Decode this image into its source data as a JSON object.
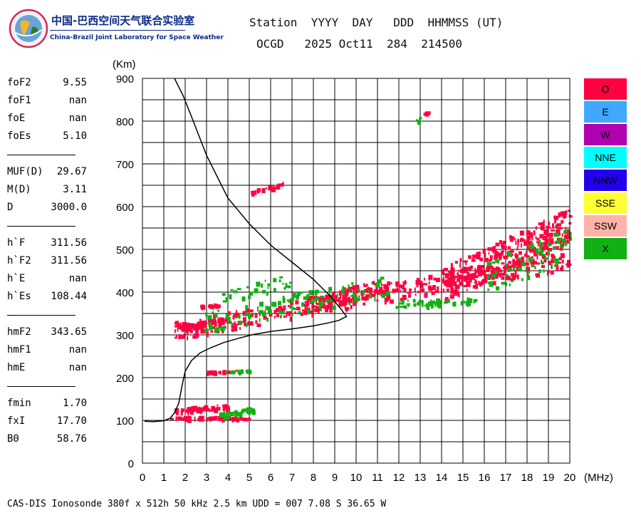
{
  "logo": {
    "name_cn": "中国-巴西空间天气联合实验室",
    "name_en": "China-Brazil Joint Laboratory for Space Weather"
  },
  "header": {
    "labels": "Station  YYYY  DAY   DDD  HHMMSS (UT)",
    "values": "OCGD   2025 Oct11  284  214500"
  },
  "params": [
    {
      "key": "foF2",
      "value": "9.55"
    },
    {
      "key": "foF1",
      "value": "nan"
    },
    {
      "key": "foE",
      "value": "nan"
    },
    {
      "key": "foEs",
      "value": "5.10"
    },
    {
      "key": "MUF(D)",
      "value": "29.67"
    },
    {
      "key": "M(D)",
      "value": "3.11"
    },
    {
      "key": "D",
      "value": "3000.0"
    },
    {
      "key": "h`F",
      "value": "311.56"
    },
    {
      "key": "h`F2",
      "value": "311.56"
    },
    {
      "key": "h`E",
      "value": "nan"
    },
    {
      "key": "h`Es",
      "value": "108.44"
    },
    {
      "key": "hmF2",
      "value": "343.65"
    },
    {
      "key": "hmF1",
      "value": "nan"
    },
    {
      "key": "hmE",
      "value": "nan"
    },
    {
      "key": "fmin",
      "value": "1.70"
    },
    {
      "key": "fxI",
      "value": "17.70"
    },
    {
      "key": "B0",
      "value": "58.76"
    }
  ],
  "footer": "CAS-DIS Ionosonde 380f x 512h 50 kHz 2.5 km UDD = 007 7.08 S 36.65 W",
  "legend": [
    {
      "label": "O",
      "color": "#ff0040"
    },
    {
      "label": "E",
      "color": "#40a8ff"
    },
    {
      "label": "W",
      "color": "#b000b0"
    },
    {
      "label": "NNE",
      "color": "#00ffff"
    },
    {
      "label": "NNW",
      "color": "#2200ee"
    },
    {
      "label": "SSE",
      "color": "#ffff33"
    },
    {
      "label": "SSW",
      "color": "#ffb3a8"
    },
    {
      "label": "X",
      "color": "#12b012"
    }
  ],
  "chart_data": {
    "type": "scatter",
    "title": "",
    "xlabel": "(MHz)",
    "ylabel": "(Km)",
    "xlim": [
      0,
      20
    ],
    "ylim": [
      0,
      900
    ],
    "x_ticks": [
      0,
      1,
      2,
      3,
      4,
      5,
      6,
      7,
      8,
      9,
      10,
      11,
      12,
      13,
      14,
      15,
      16,
      17,
      18,
      19,
      20
    ],
    "y_ticks": [
      0,
      100,
      200,
      300,
      400,
      500,
      600,
      700,
      800,
      900
    ],
    "grid": true,
    "profile": {
      "color": "#000000",
      "points": [
        [
          0.1,
          98
        ],
        [
          0.5,
          97
        ],
        [
          1.0,
          99
        ],
        [
          1.3,
          105
        ],
        [
          1.5,
          118
        ],
        [
          1.7,
          140
        ],
        [
          1.85,
          180
        ],
        [
          2.0,
          215
        ],
        [
          2.3,
          240
        ],
        [
          2.7,
          258
        ],
        [
          3.2,
          270
        ],
        [
          3.8,
          282
        ],
        [
          4.5,
          292
        ],
        [
          5.2,
          301
        ],
        [
          6.0,
          308
        ],
        [
          7.0,
          314
        ],
        [
          8.0,
          321
        ],
        [
          8.7,
          328
        ],
        [
          9.2,
          334
        ],
        [
          9.55,
          343
        ],
        [
          9.3,
          360
        ],
        [
          8.8,
          390
        ],
        [
          8.0,
          430
        ],
        [
          7.0,
          470
        ],
        [
          6.0,
          510
        ],
        [
          5.0,
          560
        ],
        [
          4.0,
          620
        ],
        [
          3.0,
          720
        ],
        [
          2.3,
          810
        ],
        [
          1.9,
          860
        ],
        [
          1.5,
          900
        ]
      ]
    },
    "series": [
      {
        "name": "O",
        "color": "#ff0040",
        "traces": [
          {
            "x": [
              1.5,
              20
            ],
            "y": [
              312,
              480
            ],
            "bias": 1.2,
            "spread": 22,
            "count": 360
          },
          {
            "x": [
              1.6,
              4.0
            ],
            "y": [
              318,
              340
            ],
            "spread": 5,
            "count": 90
          },
          {
            "x": [
              7.5,
              11.5
            ],
            "y": [
              370,
              420
            ],
            "spread": 18,
            "count": 120
          },
          {
            "x": [
              14,
              20
            ],
            "y": [
              420,
              560
            ],
            "spread": 40,
            "count": 320
          },
          {
            "x": [
              1.3,
              5.0
            ],
            "y": [
              107,
              109
            ],
            "spread": 3,
            "count": 70
          },
          {
            "x": [
              1.5,
              4.0
            ],
            "y": [
              125,
              135
            ],
            "spread": 6,
            "count": 60
          },
          {
            "x": [
              3.0,
              4.5
            ],
            "y": [
              215,
              218
            ],
            "spread": 2,
            "count": 20
          },
          {
            "x": [
              5.0,
              6.6
            ],
            "y": [
              635,
              655
            ],
            "spread": 4,
            "count": 24
          },
          {
            "x": [
              2.7,
              3.5
            ],
            "y": [
              368,
              372
            ],
            "spread": 3,
            "count": 16
          },
          {
            "x": [
              13.0,
              13.4
            ],
            "y": [
              820,
              826
            ],
            "spread": 3,
            "count": 4
          }
        ]
      },
      {
        "name": "X",
        "color": "#12b012",
        "traces": [
          {
            "x": [
              2.8,
              11.5
            ],
            "y": [
              330,
              420
            ],
            "spread": 25,
            "count": 110
          },
          {
            "x": [
              11.8,
              15.5
            ],
            "y": [
              375,
              380
            ],
            "spread": 8,
            "count": 50
          },
          {
            "x": [
              16,
              20
            ],
            "y": [
              430,
              520
            ],
            "spread": 40,
            "count": 70
          },
          {
            "x": [
              3.5,
              5.2
            ],
            "y": [
              112,
              128
            ],
            "spread": 6,
            "count": 40
          },
          {
            "x": [
              3.8,
              5.0
            ],
            "y": [
              216,
              219
            ],
            "spread": 2,
            "count": 14
          },
          {
            "x": [
              3.5,
              7.0
            ],
            "y": [
              390,
              430
            ],
            "spread": 15,
            "count": 30
          },
          {
            "x": [
              12.8,
              13.2
            ],
            "y": [
              805,
              812
            ],
            "spread": 3,
            "count": 4
          }
        ]
      }
    ]
  }
}
